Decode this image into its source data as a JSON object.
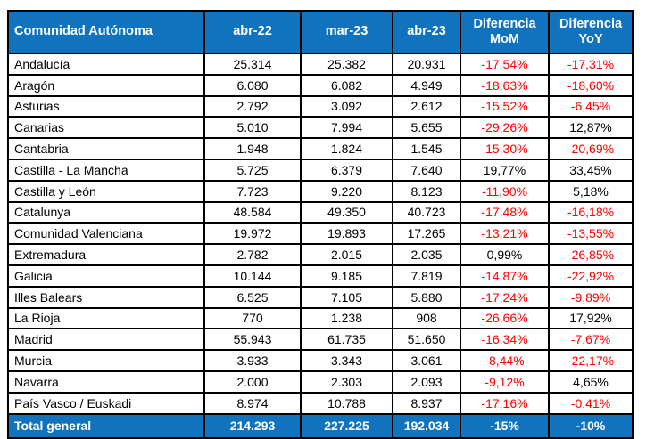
{
  "colors": {
    "header_bg": "#1173BD",
    "total_bg": "#1173BD",
    "negative_text": "#FF0000",
    "positive_text": "#000000",
    "border": "#000000",
    "header_text": "#FFFFFF"
  },
  "chart_data": {
    "type": "table",
    "title": "",
    "columns": [
      "Comunidad Autónoma",
      "abr-22",
      "mar-23",
      "abr-23",
      "Diferencia MoM",
      "Diferencia YoY"
    ],
    "rows": [
      [
        "Andalucía",
        "25.314",
        "25.382",
        "20.931",
        "-17,54%",
        "-17,31%"
      ],
      [
        "Aragón",
        "6.080",
        "6.082",
        "4.949",
        "-18,63%",
        "-18,60%"
      ],
      [
        "Asturias",
        "2.792",
        "3.092",
        "2.612",
        "-15,52%",
        "-6,45%"
      ],
      [
        "Canarias",
        "5.010",
        "7.994",
        "5.655",
        "-29,26%",
        "12,87%"
      ],
      [
        "Cantabria",
        "1.948",
        "1.824",
        "1.545",
        "-15,30%",
        "-20,69%"
      ],
      [
        "Castilla - La Mancha",
        "5.725",
        "6.379",
        "7.640",
        "19,77%",
        "33,45%"
      ],
      [
        "Castilla y León",
        "7.723",
        "9.220",
        "8.123",
        "-11,90%",
        "5,18%"
      ],
      [
        "Catalunya",
        "48.584",
        "49.350",
        "40.723",
        "-17,48%",
        "-16,18%"
      ],
      [
        "Comunidad Valenciana",
        "19.972",
        "19.893",
        "17.265",
        "-13,21%",
        "-13,55%"
      ],
      [
        "Extremadura",
        "2.782",
        "2.015",
        "2.035",
        "0,99%",
        "-26,85%"
      ],
      [
        "Galicia",
        "10.144",
        "9.185",
        "7.819",
        "-14,87%",
        "-22,92%"
      ],
      [
        "Illes Balears",
        "6.525",
        "7.105",
        "5.880",
        "-17,24%",
        "-9,89%"
      ],
      [
        "La Rioja",
        "770",
        "1.238",
        "908",
        "-26,66%",
        "17,92%"
      ],
      [
        "Madrid",
        "55.943",
        "61.735",
        "51.650",
        "-16,34%",
        "-7,67%"
      ],
      [
        "Murcia",
        "3.933",
        "3.343",
        "3.061",
        "-8,44%",
        "-22,17%"
      ],
      [
        "Navarra",
        "2.000",
        "2.303",
        "2.093",
        "-9,12%",
        "4,65%"
      ],
      [
        "País Vasco / Euskadi",
        "8.974",
        "10.788",
        "8.937",
        "-17,16%",
        "-0,41%"
      ]
    ],
    "total_row": [
      "Total general",
      "214.293",
      "227.225",
      "192.034",
      "-15%",
      "-10%"
    ]
  }
}
